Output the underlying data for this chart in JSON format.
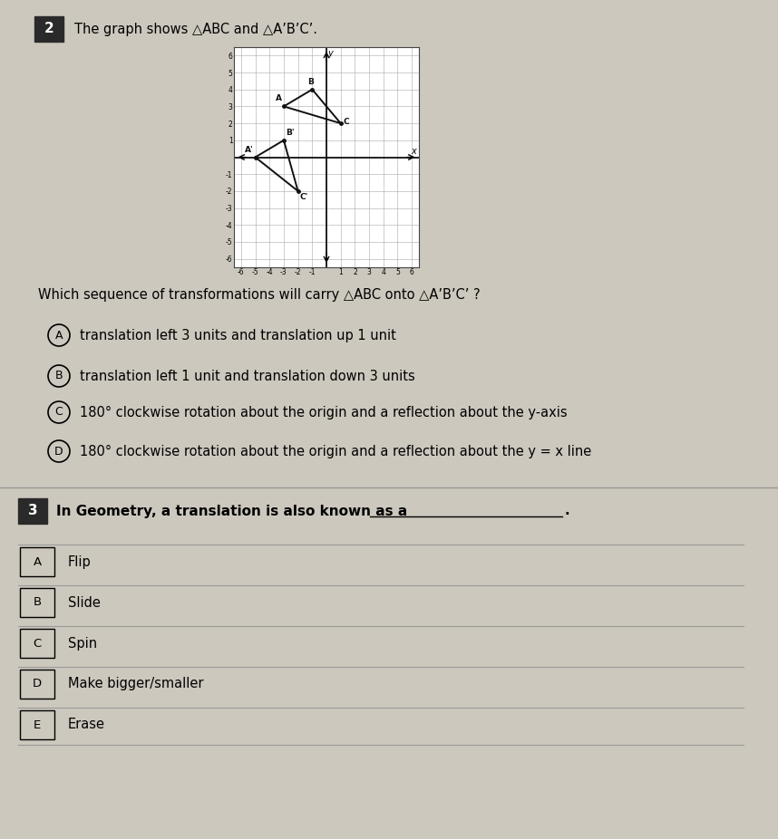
{
  "title_q2": "The graph shows △ABC and △A’B’C’.",
  "q2_number": "2",
  "triangle_ABC": {
    "A": [
      -3,
      3
    ],
    "B": [
      -1,
      4
    ],
    "C": [
      1,
      2
    ]
  },
  "triangle_ApBpCp": {
    "Ap": [
      -5,
      0
    ],
    "Bp": [
      -3,
      1
    ],
    "Cp": [
      -2,
      -2
    ]
  },
  "graph_xlim": [
    -6.5,
    6.5
  ],
  "graph_ylim": [
    -6.5,
    6.5
  ],
  "question_text": "Which sequence of transformations will carry △ABC onto △A’B’C’ ?",
  "choices": [
    {
      "label": "A",
      "text": "translation left 3 units and translation up 1 unit"
    },
    {
      "label": "B",
      "text": "translation left 1 unit and translation down 3 units"
    },
    {
      "label": "C",
      "text": "180° clockwise rotation about the origin and a reflection about the y-axis"
    },
    {
      "label": "D",
      "text": "180° clockwise rotation about the origin and a reflection about the y = x line"
    }
  ],
  "q3_number": "3",
  "q3_bold_text": "In Geometry, a translation is also known as a ",
  "q3_choices": [
    {
      "label": "A",
      "text": "Flip"
    },
    {
      "label": "B",
      "text": "Slide"
    },
    {
      "label": "C",
      "text": "Spin"
    },
    {
      "label": "D",
      "text": "Make bigger/smaller"
    },
    {
      "label": "E",
      "text": "Erase"
    }
  ],
  "bg_color": "#cdc8be",
  "graph_bg": "#ffffff",
  "grid_color": "#aaaaaa",
  "triangle_color": "#111111",
  "label_color": "#111111",
  "separator_color": "#999999",
  "badge_color": "#2a2a2a",
  "white_section_color": "#e8e4de"
}
